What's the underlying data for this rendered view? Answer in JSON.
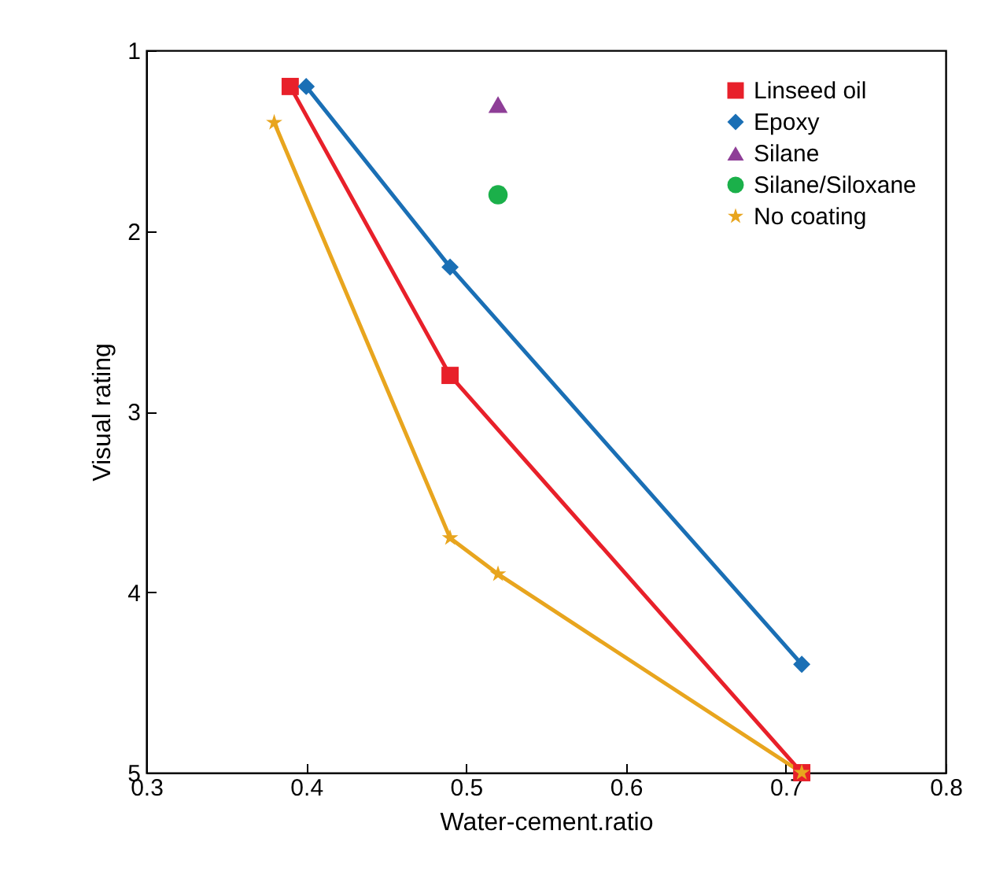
{
  "chart_data": {
    "type": "line",
    "xlabel": "Water-cement.ratio",
    "ylabel": "Visual rating",
    "xlim": [
      0.3,
      0.8
    ],
    "xticks": [
      0.3,
      0.4,
      0.5,
      0.6,
      0.7,
      0.8
    ],
    "ylim": [
      5,
      1
    ],
    "yticks": [
      1,
      2,
      3,
      4,
      5
    ],
    "grid": false,
    "legend": "top right",
    "series": [
      {
        "name": "Linseed oil",
        "color": "#e8202a",
        "marker": "square",
        "x": [
          0.39,
          0.49,
          0.71
        ],
        "values": [
          1.2,
          2.8,
          5
        ]
      },
      {
        "name": "Epoxy",
        "color": "#1a6fb5",
        "marker": "diamond",
        "x": [
          0.4,
          0.49,
          0.71
        ],
        "values": [
          1.2,
          2.2,
          4.4
        ]
      },
      {
        "name": "Silane",
        "color": "#8e3e97",
        "type": "scatter",
        "marker": "triangle",
        "x": [
          0.52
        ],
        "values": [
          1.3
        ]
      },
      {
        "name": "Silane/Siloxane",
        "color": "#1bb04a",
        "type": "scatter",
        "marker": "circle",
        "x": [
          0.52
        ],
        "values": [
          1.8
        ]
      },
      {
        "name": "No coating",
        "color": "#e8a51e",
        "marker": "star",
        "x": [
          0.38,
          0.49,
          0.52,
          0.71
        ],
        "values": [
          1.4,
          3.7,
          3.9,
          5
        ]
      }
    ]
  }
}
